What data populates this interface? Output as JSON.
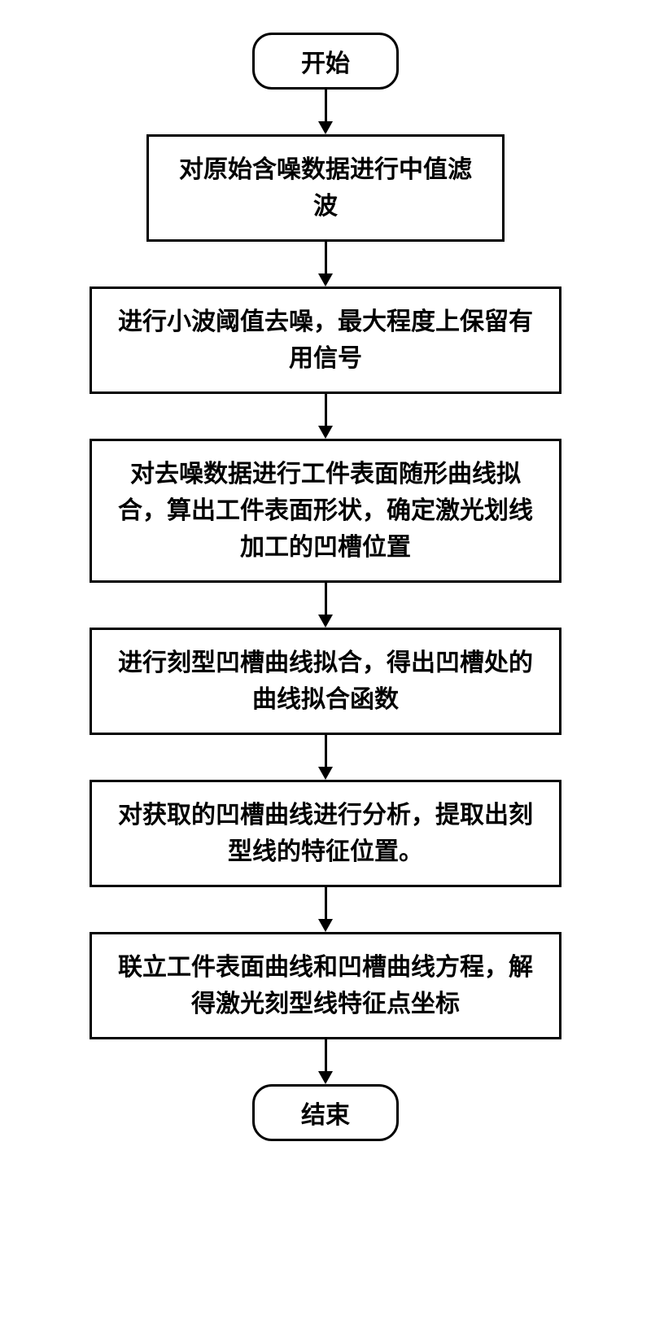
{
  "flowchart": {
    "type": "flowchart",
    "background_color": "#ffffff",
    "border_color": "#000000",
    "border_width": 3,
    "text_color": "#000000",
    "font_size": 30,
    "font_weight": "bold",
    "font_family": "SimSun",
    "arrow_color": "#000000",
    "arrow_width": 3,
    "terminal_border_radius": 24,
    "nodes": [
      {
        "id": "start",
        "type": "terminal",
        "label": "开始"
      },
      {
        "id": "step1",
        "type": "process",
        "width": "narrow",
        "label": "对原始含噪数据进行中值滤波"
      },
      {
        "id": "step2",
        "type": "process",
        "width": "wide",
        "label": "进行小波阈值去噪，最大程度上保留有用信号"
      },
      {
        "id": "step3",
        "type": "process",
        "width": "wide",
        "label": "对去噪数据进行工件表面随形曲线拟合，算出工件表面形状，确定激光划线加工的凹槽位置"
      },
      {
        "id": "step4",
        "type": "process",
        "width": "wide",
        "label": "进行刻型凹槽曲线拟合，得出凹槽处的曲线拟合函数"
      },
      {
        "id": "step5",
        "type": "process",
        "width": "wide",
        "label": "对获取的凹槽曲线进行分析，提取出刻型线的特征位置。"
      },
      {
        "id": "step6",
        "type": "process",
        "width": "wide",
        "label": "联立工件表面曲线和凹槽曲线方程，解得激光刻型线特征点坐标"
      },
      {
        "id": "end",
        "type": "terminal",
        "label": "结束"
      }
    ],
    "edges": [
      {
        "from": "start",
        "to": "step1"
      },
      {
        "from": "step1",
        "to": "step2"
      },
      {
        "from": "step2",
        "to": "step3"
      },
      {
        "from": "step3",
        "to": "step4"
      },
      {
        "from": "step4",
        "to": "step5"
      },
      {
        "from": "step5",
        "to": "step6"
      },
      {
        "from": "step6",
        "to": "end"
      }
    ]
  }
}
